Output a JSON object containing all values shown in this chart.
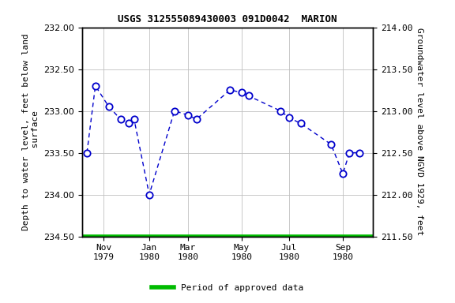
{
  "title": "USGS 312555089430003 091D0042  MARION",
  "ylabel_left": "Depth to water level, feet below land\n surface",
  "ylabel_right": "Groundwater level above NGVD 1929, feet",
  "ylim_left": [
    234.5,
    232.0
  ],
  "ylim_right": [
    211.5,
    214.0
  ],
  "yticks_left": [
    232.0,
    232.5,
    233.0,
    233.5,
    234.0,
    234.5
  ],
  "yticks_right": [
    211.5,
    212.0,
    212.5,
    213.0,
    213.5,
    214.0
  ],
  "x_data": [
    0,
    0.5,
    1.3,
    2.0,
    2.5,
    2.8,
    3.7,
    5.2,
    6.0,
    6.5,
    8.5,
    9.2,
    9.6,
    11.5,
    12.0,
    12.7,
    14.5,
    15.2,
    15.6,
    16.2
  ],
  "y_data": [
    233.5,
    232.7,
    232.95,
    233.1,
    233.15,
    233.1,
    234.0,
    233.0,
    233.05,
    233.1,
    232.75,
    232.78,
    232.82,
    233.0,
    233.08,
    233.15,
    233.4,
    233.75,
    233.5,
    233.5
  ],
  "xlim": [
    -0.3,
    17.0
  ],
  "xtick_positions": [
    1.0,
    3.7,
    6.0,
    9.2,
    12.0,
    15.2
  ],
  "xtick_labels": [
    "Nov\n1979",
    "Jan\n1980",
    "Mar\n1980",
    "May\n1980",
    "Jul\n1980",
    "Sep\n1980"
  ],
  "line_color": "#0000cc",
  "marker_facecolor": "#ffffff",
  "marker_edgecolor": "#0000cc",
  "approved_color": "#00bb00",
  "background_color": "#ffffff",
  "grid_color": "#c0c0c0",
  "legend_label": "Period of approved data",
  "title_fontsize": 9,
  "axis_label_fontsize": 8,
  "tick_fontsize": 8,
  "legend_fontsize": 8,
  "marker_size": 6,
  "line_width": 1.0,
  "approved_linewidth": 4
}
